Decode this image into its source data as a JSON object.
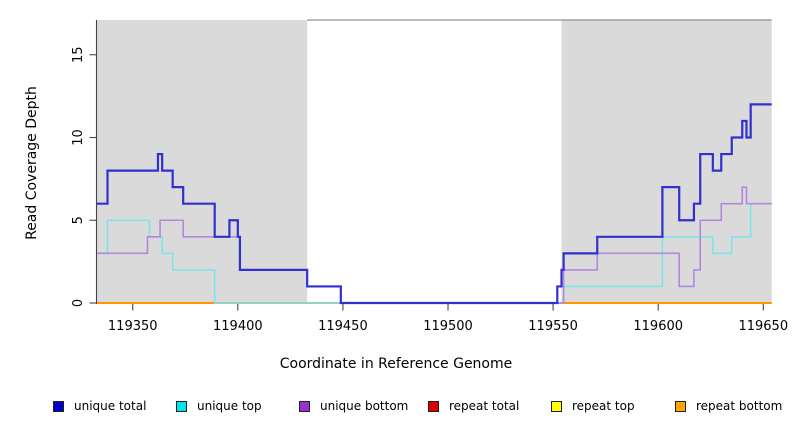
{
  "titles": {
    "y": "Read Coverage Depth",
    "x": "Coordinate in Reference Genome"
  },
  "chart_data": {
    "type": "line",
    "subtype": "step-coverage",
    "title": "",
    "xlabel": "Coordinate in Reference Genome",
    "ylabel": "Read Coverage Depth",
    "xlim": [
      119333,
      119654
    ],
    "ylim": [
      0,
      17.1
    ],
    "x_ticks": [
      119350,
      119400,
      119450,
      119500,
      119550,
      119600,
      119650
    ],
    "y_ticks": [
      0,
      5,
      10,
      15
    ],
    "grid": false,
    "shade_color": "#dadada",
    "shaded_regions": [
      {
        "from": 119333,
        "to": 119433
      },
      {
        "from": 119554,
        "to": 119654
      }
    ],
    "top_border": {
      "from": 119433,
      "to": 119654,
      "color": "#909090"
    },
    "series": [
      {
        "name": "repeat total",
        "in_legend": true,
        "line_color": "#dd0000",
        "legend_color": "#dd0000",
        "line_width": 1.5,
        "end_x": 119654,
        "steps": [
          [
            119333,
            0
          ]
        ]
      },
      {
        "name": "repeat top",
        "in_legend": true,
        "line_color": "#ffff00",
        "legend_color": "#ffff00",
        "line_width": 1.5,
        "end_x": 119654,
        "steps": [
          [
            119333,
            0
          ]
        ]
      },
      {
        "name": "repeat bottom",
        "in_legend": true,
        "line_color": "#ff9500",
        "legend_color": "#ffa500",
        "line_width": 2,
        "end_x": 119654,
        "steps": [
          [
            119333,
            0
          ]
        ]
      },
      {
        "name": "zero baseline",
        "in_legend": false,
        "line_color": "#93cb93",
        "legend_color": "#93cb93",
        "line_width": 1.5,
        "end_x": 119554,
        "steps": [
          [
            119389,
            0
          ]
        ]
      },
      {
        "name": "unique top",
        "in_legend": true,
        "line_color": "#7fe4e8",
        "legend_color": "#00e5ee",
        "line_width": 1.6,
        "end_x": 119654,
        "steps": [
          [
            119333,
            3
          ],
          [
            119338,
            5
          ],
          [
            119358,
            4
          ],
          [
            119364,
            3
          ],
          [
            119369,
            2
          ],
          [
            119389,
            0
          ],
          [
            119555,
            1
          ],
          [
            119602,
            4
          ],
          [
            119626,
            3
          ],
          [
            119635,
            4
          ],
          [
            119644,
            6
          ]
        ]
      },
      {
        "name": "unique bottom",
        "in_legend": true,
        "line_color": "#b287de",
        "legend_color": "#9932cc",
        "line_width": 1.6,
        "end_x": 119654,
        "steps": [
          [
            119333,
            3
          ],
          [
            119357,
            4
          ],
          [
            119363,
            5
          ],
          [
            119374,
            4
          ],
          [
            119401,
            2
          ],
          [
            119433,
            1
          ],
          [
            119449,
            0
          ],
          [
            119555,
            2
          ],
          [
            119571,
            3
          ],
          [
            119610,
            1
          ],
          [
            119617,
            2
          ],
          [
            119620,
            5
          ],
          [
            119630,
            6
          ],
          [
            119640,
            7
          ],
          [
            119642,
            6
          ]
        ]
      },
      {
        "name": "unique total",
        "in_legend": true,
        "line_color": "#3030d0",
        "legend_color": "#0000cc",
        "line_width": 2.2,
        "end_x": 119654,
        "steps": [
          [
            119333,
            6
          ],
          [
            119338,
            8
          ],
          [
            119362,
            9
          ],
          [
            119364,
            8
          ],
          [
            119369,
            7
          ],
          [
            119374,
            6
          ],
          [
            119389,
            4
          ],
          [
            119396,
            5
          ],
          [
            119400,
            4
          ],
          [
            119401,
            2
          ],
          [
            119433,
            1
          ],
          [
            119449,
            0
          ],
          [
            119552,
            1
          ],
          [
            119554,
            2
          ],
          [
            119555,
            3
          ],
          [
            119571,
            4
          ],
          [
            119602,
            7
          ],
          [
            119610,
            5
          ],
          [
            119617,
            6
          ],
          [
            119620,
            9
          ],
          [
            119626,
            8
          ],
          [
            119630,
            9
          ],
          [
            119635,
            10
          ],
          [
            119640,
            11
          ],
          [
            119642,
            10
          ],
          [
            119644,
            12
          ]
        ]
      }
    ],
    "legend_position": "bottom",
    "legend_order": [
      "unique total",
      "unique top",
      "unique bottom",
      "repeat total",
      "repeat top",
      "repeat bottom"
    ]
  },
  "legend": {
    "items": [
      {
        "label": "unique total",
        "color": "#0000cc"
      },
      {
        "label": "unique top",
        "color": "#00e5ee"
      },
      {
        "label": "unique bottom",
        "color": "#9932cc"
      },
      {
        "label": "repeat total",
        "color": "#dd0000"
      },
      {
        "label": "repeat top",
        "color": "#ffff00"
      },
      {
        "label": "repeat bottom",
        "color": "#ffa500"
      }
    ]
  }
}
